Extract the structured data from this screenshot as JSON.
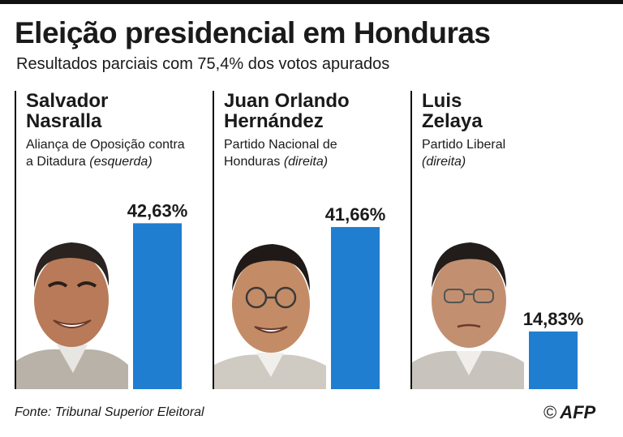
{
  "header": {
    "title": "Eleição presidencial em Honduras",
    "subtitle": "Resultados parciais com 75,4% dos votos apurados"
  },
  "candidates": [
    {
      "name_line1": "Salvador",
      "name_line2": "Nasralla",
      "party_line1": "Aliança de Oposição contra",
      "party_line2": "a Ditadura",
      "lean": "(esquerda)"
    },
    {
      "name_line1": "Juan Orlando",
      "name_line2": "Hernández",
      "party_line1": "Partido Nacional de",
      "party_line2": "Honduras",
      "lean": "(direita)"
    },
    {
      "name_line1": "Luis",
      "name_line2": "Zelaya",
      "party_line1": "Partido Liberal",
      "party_line2": "",
      "lean": "(direita)"
    }
  ],
  "chart_data": {
    "type": "bar",
    "categories": [
      "Salvador Nasralla",
      "Juan Orlando Hernández",
      "Luis Zelaya"
    ],
    "values": [
      42.63,
      41.66,
      14.83
    ],
    "value_labels": [
      "42,63%",
      "41,66%",
      "14,83%"
    ],
    "unit": "%",
    "ylim": [
      0,
      50
    ],
    "bar_color": "#1f7ed0",
    "grid": false,
    "legend": "none"
  },
  "footer": {
    "source": "Fonte: Tribunal Superior Eleitoral",
    "copyright_symbol": "©",
    "agency": "AFP"
  }
}
